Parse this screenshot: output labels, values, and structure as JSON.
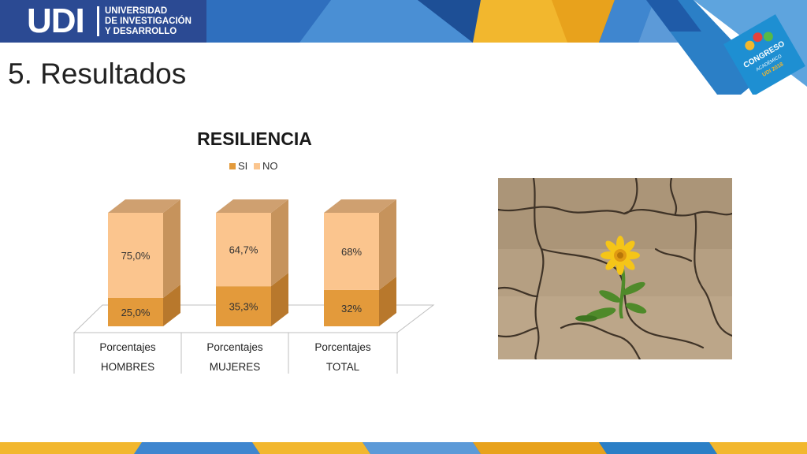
{
  "header": {
    "logo_mark": "UDI",
    "org_line1": "UNIVERSIDAD",
    "org_line2": "DE INVESTIGACIÓN",
    "org_line3": "Y DESARROLLO"
  },
  "page_title": "5. Resultados",
  "congress_badge": {
    "line1": "CONGRESO",
    "line2": "ACADÉMICO",
    "line3": "UDI 2018"
  },
  "colors": {
    "si": "#e39a3b",
    "si_side": "#b8782c",
    "no": "#fbc58e",
    "no_side": "#c6935c",
    "no_top": "#cfa070",
    "banner_blue": "#1f5ba8",
    "banner_yellow": "#f2b72e"
  },
  "chart_data": {
    "type": "bar",
    "stacked": true,
    "three_d": true,
    "title": "RESILIENCIA",
    "legend_position": "top",
    "categories": [
      [
        "Porcentajes",
        "HOMBRES"
      ],
      [
        "Porcentajes",
        "MUJERES"
      ],
      [
        "Porcentajes",
        "TOTAL"
      ]
    ],
    "series": [
      {
        "name": "SI",
        "values": [
          25.0,
          35.3,
          32
        ],
        "labels": [
          "25,0%",
          "35,3%",
          "32%"
        ]
      },
      {
        "name": "NO",
        "values": [
          75.0,
          64.7,
          68
        ],
        "labels": [
          "75,0%",
          "64,7%",
          "68%"
        ]
      }
    ],
    "ylim": [
      0,
      100
    ],
    "grid": false
  },
  "photo": {
    "subject": "yellow flower growing from cracked dry soil"
  }
}
